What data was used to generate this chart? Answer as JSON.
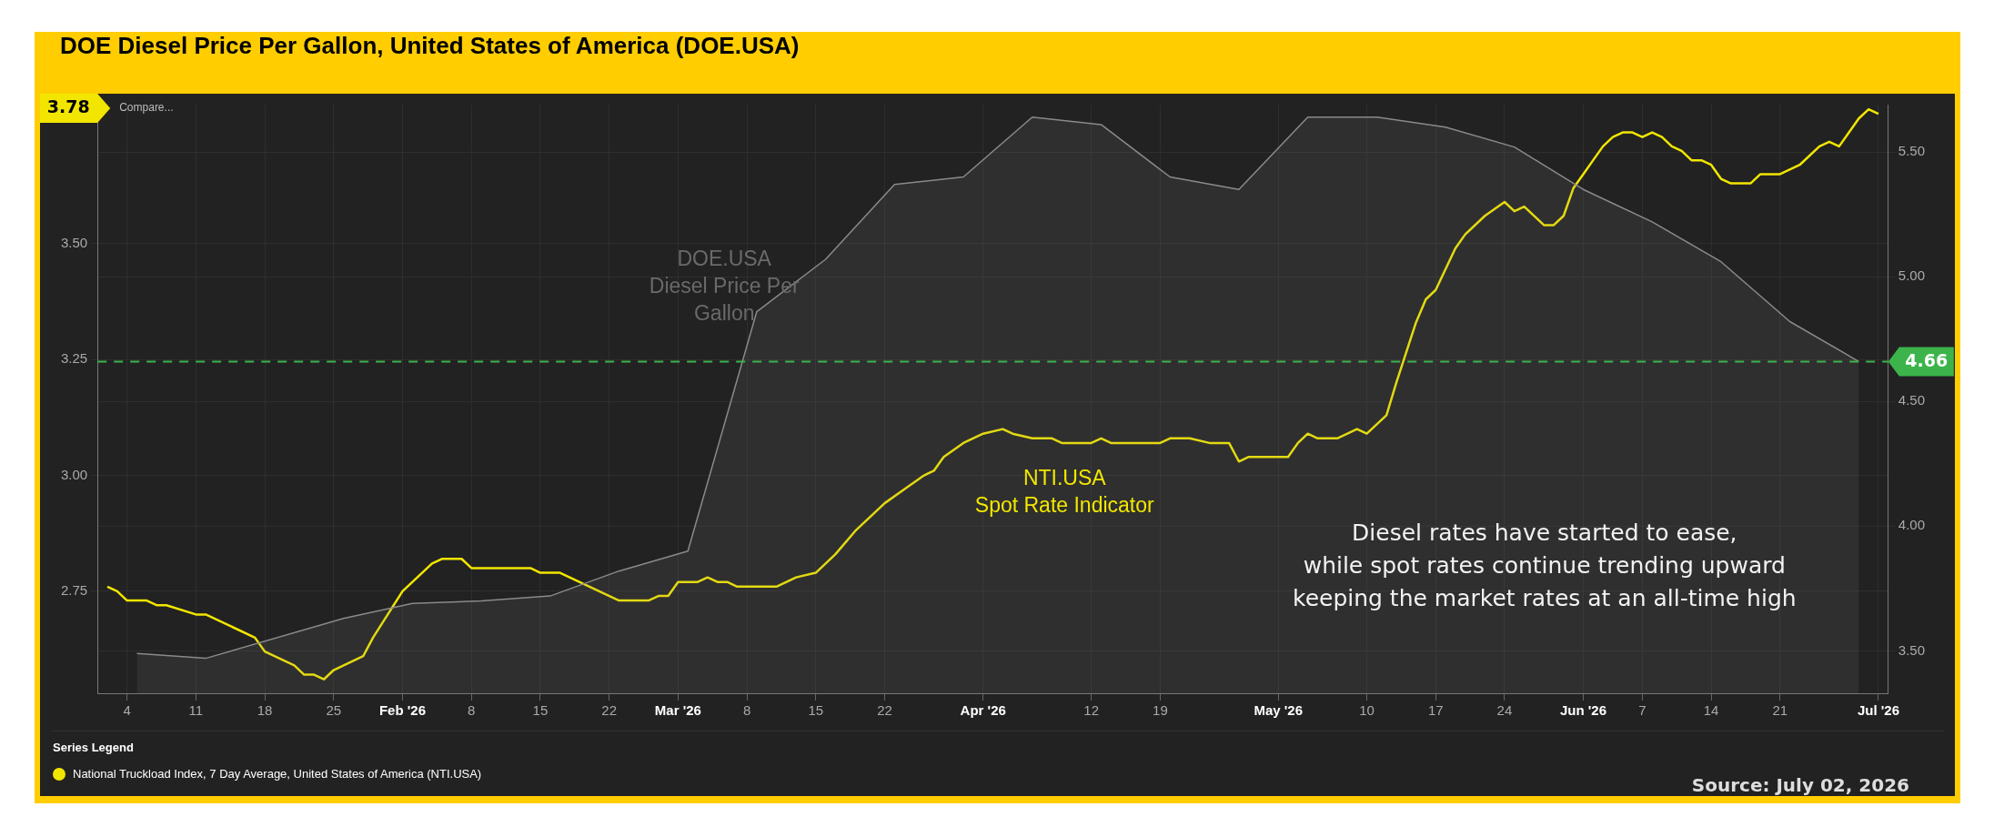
{
  "chart_data": {
    "type": "line",
    "title": "DOE Diesel Price Per Gallon, United States of America (DOE.USA)",
    "legend_title": "Series Legend",
    "legend": "bottom",
    "grid": true,
    "marker": "none",
    "line_style": "solid",
    "xlim": [
      "2026-01-01",
      "2026-07-02"
    ],
    "xticks": [
      {
        "value": "2026-01-04",
        "label": "4"
      },
      {
        "value": "2026-01-11",
        "label": "11"
      },
      {
        "value": "2026-01-18",
        "label": "18"
      },
      {
        "value": "2026-01-25",
        "label": "25"
      },
      {
        "value": "2026-02-01",
        "label": "Feb '26"
      },
      {
        "value": "2026-02-08",
        "label": "8"
      },
      {
        "value": "2026-02-15",
        "label": "15"
      },
      {
        "value": "2026-02-22",
        "label": "22"
      },
      {
        "value": "2026-03-01",
        "label": "Mar '26"
      },
      {
        "value": "2026-03-08",
        "label": "8"
      },
      {
        "value": "2026-03-15",
        "label": "15"
      },
      {
        "value": "2026-03-22",
        "label": "22"
      },
      {
        "value": "2026-04-01",
        "label": "Apr '26"
      },
      {
        "value": "2026-04-12",
        "label": "12"
      },
      {
        "value": "2026-04-19",
        "label": "19"
      },
      {
        "value": "2026-05-01",
        "label": "May '26"
      },
      {
        "value": "2026-05-10",
        "label": "10"
      },
      {
        "value": "2026-05-17",
        "label": "17"
      },
      {
        "value": "2026-05-24",
        "label": "24"
      },
      {
        "value": "2026-06-01",
        "label": "Jun '26"
      },
      {
        "value": "2026-06-07",
        "label": "7"
      },
      {
        "value": "2026-06-14",
        "label": "14"
      },
      {
        "value": "2026-06-21",
        "label": "21"
      },
      {
        "value": "2026-07-01",
        "label": "Jul '26"
      }
    ],
    "ylim": [
      2.53,
      3.8
    ],
    "yticks": [
      2.75,
      {
        "value": 3,
        "label": "3.00"
      },
      3.25,
      {
        "value": 3.5,
        "label": "3.50"
      }
    ],
    "y2lim": [
      3.33,
      5.69
    ],
    "y2ticks": [
      {
        "value": 3.5,
        "label": "3.50"
      },
      {
        "value": 4,
        "label": "4.00"
      },
      {
        "value": 4.5,
        "label": "4.50"
      },
      {
        "value": 5,
        "label": "5.00"
      },
      {
        "value": 5.5,
        "label": "5.50"
      }
    ],
    "ref_lines": [
      {
        "axis": "y2",
        "value": 4.66,
        "label": "4.66",
        "color": "#3cb44b",
        "line_style": "dashed"
      }
    ],
    "series": [
      {
        "type": "area",
        "axis": "y2",
        "color": "#8a8a8a",
        "x": [
          "2026-01-05",
          "2026-01-12",
          "2026-01-26",
          "2026-02-02",
          "2026-02-09",
          "2026-02-16",
          "2026-02-23",
          "2026-03-02",
          "2026-03-09",
          "2026-03-16",
          "2026-03-23",
          "2026-03-30",
          "2026-04-06",
          "2026-04-13",
          "2026-04-20",
          "2026-04-27",
          "2026-05-04",
          "2026-05-11",
          "2026-05-18",
          "2026-05-25",
          "2026-06-01",
          "2026-06-08",
          "2026-06-15",
          "2026-06-22",
          "2026-06-29"
        ],
        "values": [
          3.49,
          3.47,
          3.63,
          3.69,
          3.7,
          3.72,
          3.82,
          3.9,
          4.86,
          5.07,
          5.37,
          5.4,
          5.64,
          5.61,
          5.4,
          5.35,
          5.64,
          5.64,
          5.6,
          5.52,
          5.35,
          5.22,
          5.06,
          4.82,
          4.66
        ]
      },
      {
        "type": "line",
        "name": "National Truckload Index, 7 Day Average, United States of America (NTI.USA)",
        "color": "#f2e600",
        "x": [
          "2026-01-02",
          "2026-01-03",
          "2026-01-04",
          "2026-01-06",
          "2026-01-07",
          "2026-01-08",
          "2026-01-11",
          "2026-01-12",
          "2026-01-17",
          "2026-01-18",
          "2026-01-21",
          "2026-01-22",
          "2026-01-23",
          "2026-01-24",
          "2026-01-25",
          "2026-01-28",
          "2026-01-29",
          "2026-02-01",
          "2026-02-04",
          "2026-02-05",
          "2026-02-07",
          "2026-02-08",
          "2026-02-14",
          "2026-02-15",
          "2026-02-17",
          "2026-02-23",
          "2026-02-26",
          "2026-02-27",
          "2026-02-28",
          "2026-03-01",
          "2026-03-03",
          "2026-03-04",
          "2026-03-05",
          "2026-03-06",
          "2026-03-07",
          "2026-03-11",
          "2026-03-13",
          "2026-03-15",
          "2026-03-17",
          "2026-03-19",
          "2026-03-22",
          "2026-03-24",
          "2026-03-26",
          "2026-03-27",
          "2026-03-28",
          "2026-03-30",
          "2026-04-01",
          "2026-04-03",
          "2026-04-04",
          "2026-04-06",
          "2026-04-08",
          "2026-04-09",
          "2026-04-12",
          "2026-04-13",
          "2026-04-14",
          "2026-04-19",
          "2026-04-20",
          "2026-04-22",
          "2026-04-24",
          "2026-04-26",
          "2026-04-27",
          "2026-04-28",
          "2026-05-02",
          "2026-05-03",
          "2026-05-04",
          "2026-05-05",
          "2026-05-07",
          "2026-05-09",
          "2026-05-10",
          "2026-05-12",
          "2026-05-13",
          "2026-05-15",
          "2026-05-16",
          "2026-05-17",
          "2026-05-19",
          "2026-05-20",
          "2026-05-22",
          "2026-05-24",
          "2026-05-25",
          "2026-05-26",
          "2026-05-28",
          "2026-05-29",
          "2026-05-30",
          "2026-05-31",
          "2026-06-01",
          "2026-06-02",
          "2026-06-03",
          "2026-06-04",
          "2026-06-05",
          "2026-06-06",
          "2026-06-07",
          "2026-06-08",
          "2026-06-09",
          "2026-06-10",
          "2026-06-11",
          "2026-06-12",
          "2026-06-13",
          "2026-06-14",
          "2026-06-15",
          "2026-06-16",
          "2026-06-18",
          "2026-06-19",
          "2026-06-21",
          "2026-06-23",
          "2026-06-25",
          "2026-06-26",
          "2026-06-27",
          "2026-06-29",
          "2026-06-30",
          "2026-07-01"
        ],
        "values": [
          2.76,
          2.75,
          2.73,
          2.73,
          2.72,
          2.72,
          2.7,
          2.7,
          2.65,
          2.62,
          2.59,
          2.57,
          2.57,
          2.56,
          2.58,
          2.61,
          2.65,
          2.75,
          2.81,
          2.82,
          2.82,
          2.8,
          2.8,
          2.79,
          2.79,
          2.73,
          2.73,
          2.74,
          2.74,
          2.77,
          2.77,
          2.78,
          2.77,
          2.77,
          2.76,
          2.76,
          2.78,
          2.79,
          2.83,
          2.88,
          2.94,
          2.97,
          3.0,
          3.01,
          3.04,
          3.07,
          3.09,
          3.1,
          3.09,
          3.08,
          3.08,
          3.07,
          3.07,
          3.08,
          3.07,
          3.07,
          3.08,
          3.08,
          3.07,
          3.07,
          3.03,
          3.04,
          3.04,
          3.07,
          3.09,
          3.08,
          3.08,
          3.1,
          3.09,
          3.13,
          3.2,
          3.33,
          3.38,
          3.4,
          3.49,
          3.52,
          3.56,
          3.59,
          3.57,
          3.58,
          3.54,
          3.54,
          3.56,
          3.62,
          3.65,
          3.68,
          3.71,
          3.73,
          3.74,
          3.74,
          3.73,
          3.74,
          3.73,
          3.71,
          3.7,
          3.68,
          3.68,
          3.67,
          3.64,
          3.63,
          3.63,
          3.65,
          3.65,
          3.67,
          3.71,
          3.72,
          3.71,
          3.77,
          3.79,
          3.78
        ]
      }
    ],
    "annotations": [
      "DOE.USA\nDiesel Price Per\nGallon",
      "NTI.USA\nSpot Rate Indicator",
      "3.78",
      "Compare...",
      "Diesel rates have started to ease,\nwhile spot rates continue trending upward\nkeeping the market rates at an all-time high",
      "Source: July 02, 2026"
    ]
  }
}
